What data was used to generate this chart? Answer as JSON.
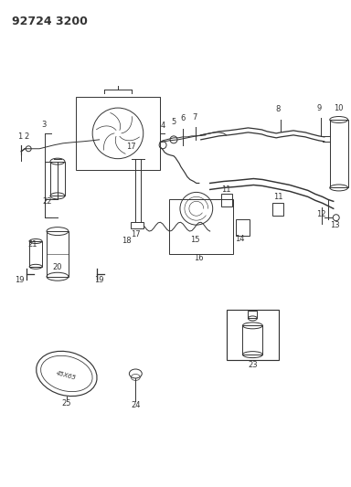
{
  "title": "92724 3200",
  "bg_color": "#ffffff",
  "line_color": "#333333",
  "title_fontsize": 9,
  "label_fontsize": 6,
  "fig_width": 3.84,
  "fig_height": 5.33,
  "dpi": 100
}
